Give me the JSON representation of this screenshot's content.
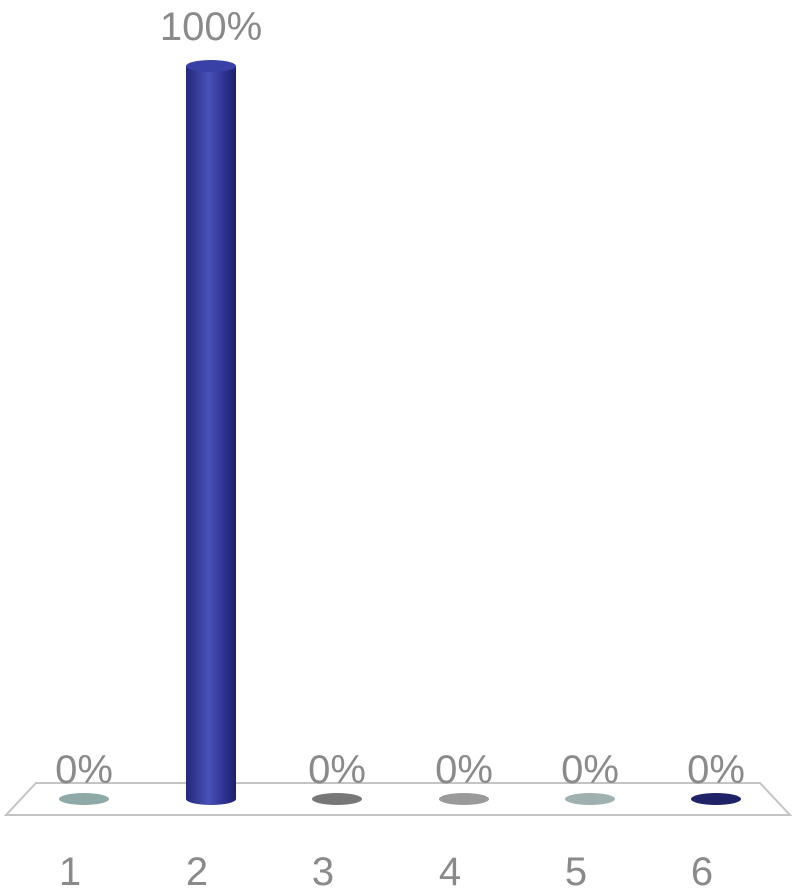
{
  "chart_data": {
    "type": "bar",
    "categories": [
      "1",
      "2",
      "3",
      "4",
      "5",
      "6"
    ],
    "values": [
      0,
      100,
      0,
      0,
      0,
      0
    ],
    "data_labels": [
      "0%",
      "100%",
      "0%",
      "0%",
      "0%",
      "0%"
    ],
    "ylim": [
      0,
      100
    ],
    "unit": "%",
    "grid": false,
    "legend": "none",
    "title": "",
    "xlabel": "",
    "ylabel": "",
    "colors": [
      "#8fa8a8",
      "#2e3394",
      "#777777",
      "#9a9a9a",
      "#9fb0b0",
      "#1f2266"
    ]
  }
}
